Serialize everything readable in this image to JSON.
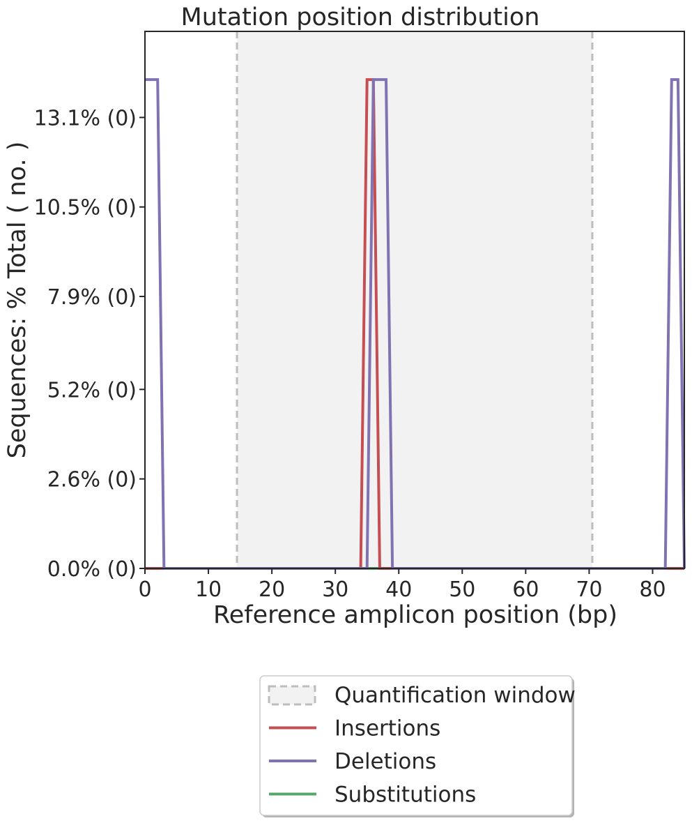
{
  "chart_data": {
    "type": "line",
    "title": "Mutation position distribution",
    "xlabel": "Reference amplicon position (bp)",
    "ylabel": "Sequences: % Total ( no. )",
    "xlim": [
      0,
      85
    ],
    "ylim": [
      0,
      15.6
    ],
    "xticks": [
      0,
      10,
      20,
      30,
      40,
      50,
      60,
      70,
      80
    ],
    "yticks": [
      {
        "value": 0.0,
        "label": "0.0% (0)"
      },
      {
        "value": 2.6,
        "label": "2.6% (0)"
      },
      {
        "value": 5.2,
        "label": "5.2% (0)"
      },
      {
        "value": 7.9,
        "label": "7.9% (0)"
      },
      {
        "value": 10.5,
        "label": "10.5% (0)"
      },
      {
        "value": 13.1,
        "label": "13.1% (0)"
      }
    ],
    "quantification_window": {
      "start": 14.5,
      "end": 70.5,
      "fill": "#f2f2f2",
      "line_color": "#bdbdbd"
    },
    "legend": {
      "position": "below",
      "items": [
        "Quantification window",
        "Insertions",
        "Deletions",
        "Substitutions"
      ]
    },
    "grid": false,
    "series": [
      {
        "name": "Insertions",
        "color": "#c44e52",
        "x": [
          0,
          34,
          35,
          36,
          37,
          85
        ],
        "y": [
          0,
          0,
          14.2,
          14.2,
          0,
          0
        ]
      },
      {
        "name": "Deletions",
        "color": "#8172b2",
        "x": [
          0,
          2,
          3,
          35,
          36,
          38,
          39,
          82,
          83,
          84,
          85
        ],
        "y": [
          14.2,
          14.2,
          0,
          0,
          14.2,
          14.2,
          0,
          0,
          14.2,
          14.2,
          0
        ]
      },
      {
        "name": "Substitutions",
        "color": "#55a868",
        "x": [
          0,
          85
        ],
        "y": [
          0,
          0
        ]
      }
    ]
  }
}
